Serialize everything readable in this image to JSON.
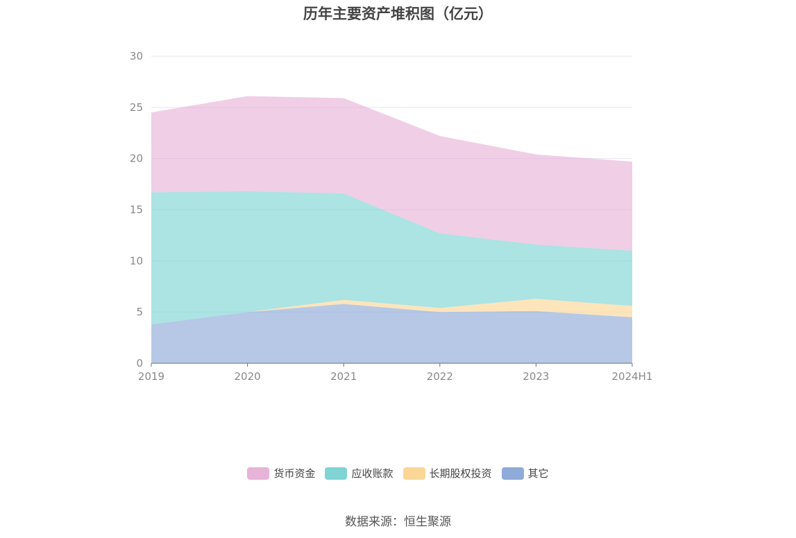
{
  "chart_data": {
    "type": "area",
    "stacked": true,
    "title": "历年主要资产堆积图（亿元）",
    "categories": [
      "2019",
      "2020",
      "2021",
      "2022",
      "2023",
      "2024H1"
    ],
    "ylim": [
      0,
      30
    ],
    "yticks": [
      "0",
      "5",
      "10",
      "15",
      "20",
      "25",
      "30"
    ],
    "grid": true,
    "legend_position": "bottom",
    "series": [
      {
        "name": "其它",
        "color": "#8fabd9",
        "values": [
          3.8,
          5.0,
          5.8,
          5.0,
          5.1,
          4.5
        ]
      },
      {
        "name": "长期股权投资",
        "color": "#fad797",
        "values": [
          0.0,
          0.0,
          0.4,
          0.4,
          1.2,
          1.1
        ]
      },
      {
        "name": "应收账款",
        "color": "#80d4d4",
        "values": [
          12.9,
          11.8,
          10.4,
          7.3,
          5.3,
          5.4
        ]
      },
      {
        "name": "货币资金",
        "color": "#e8b3d8",
        "values": [
          7.8,
          9.3,
          9.3,
          9.5,
          8.8,
          8.7
        ]
      }
    ],
    "legend_order": [
      "货币资金",
      "应收账款",
      "长期股权投资",
      "其它"
    ]
  },
  "source": "数据来源：恒生聚源"
}
